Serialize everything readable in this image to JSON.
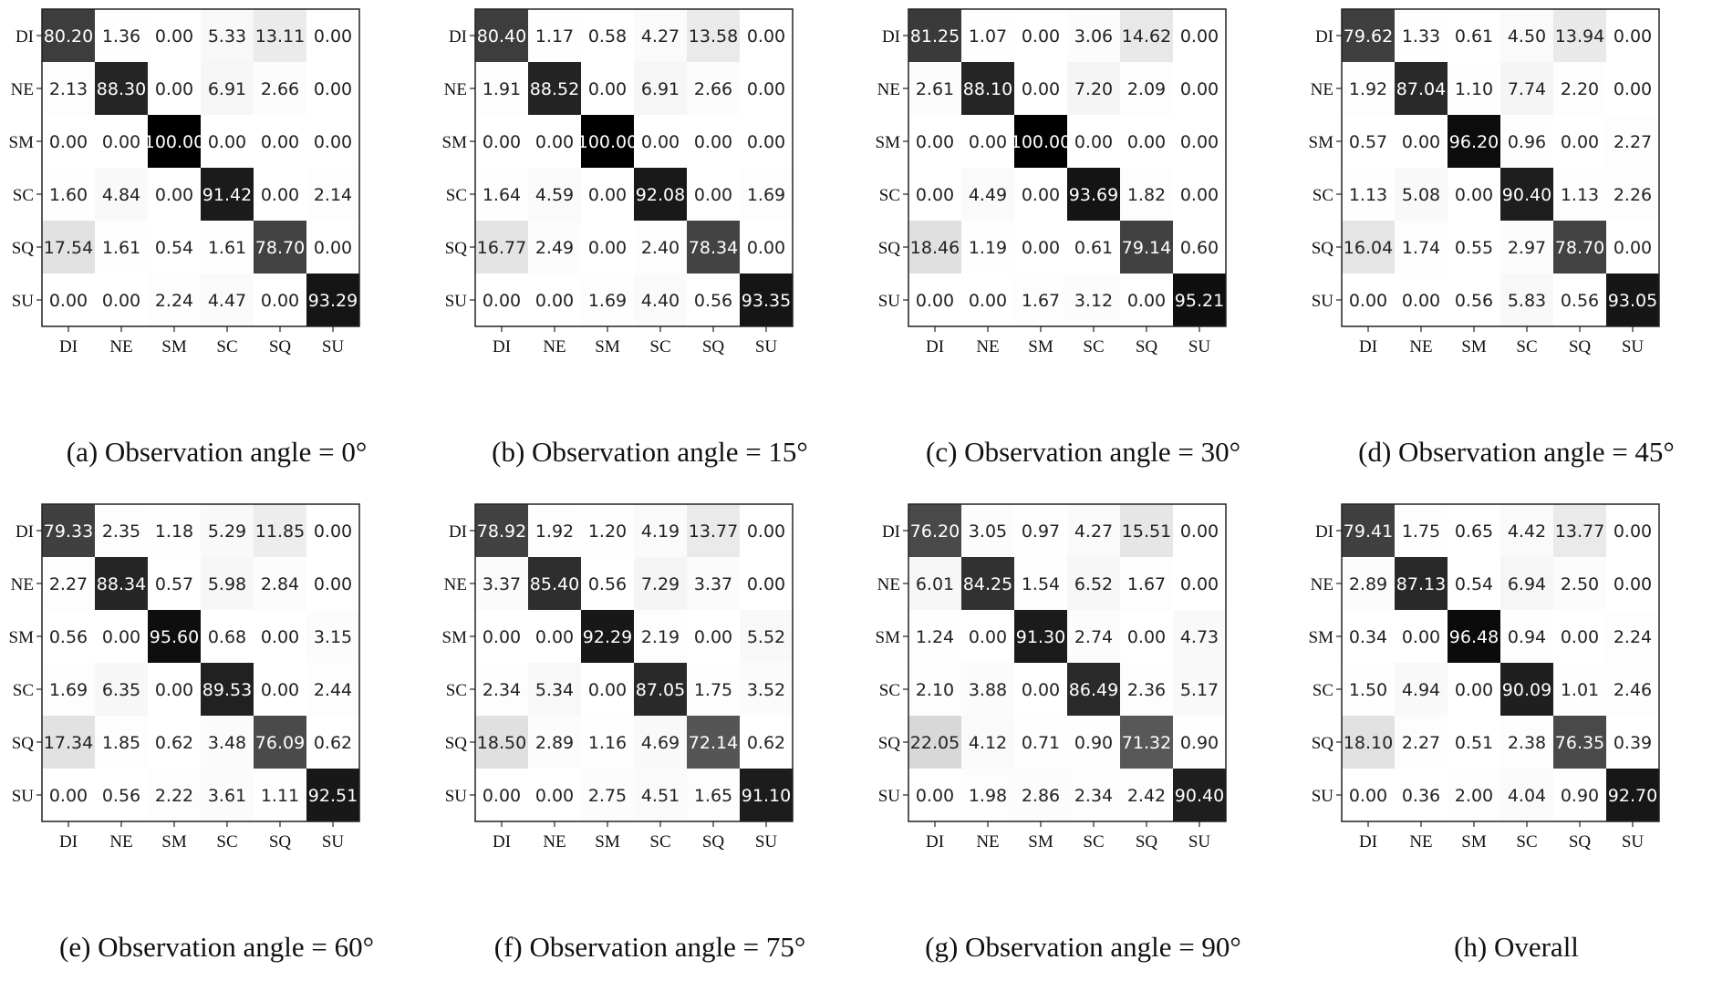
{
  "chart_data": [
    {
      "type": "heatmap",
      "caption": "(a) Observation angle = 0°",
      "xlabels": [
        "DI",
        "NE",
        "SM",
        "SC",
        "SQ",
        "SU"
      ],
      "ylabels": [
        "DI",
        "NE",
        "SM",
        "SC",
        "SQ",
        "SU"
      ],
      "values": [
        [
          80.2,
          1.36,
          0.0,
          5.33,
          13.11,
          0.0
        ],
        [
          2.13,
          88.3,
          0.0,
          6.91,
          2.66,
          0.0
        ],
        [
          0.0,
          0.0,
          100.0,
          0.0,
          0.0,
          0.0
        ],
        [
          1.6,
          4.84,
          0.0,
          91.42,
          0.0,
          2.14
        ],
        [
          17.54,
          1.61,
          0.54,
          1.61,
          78.7,
          0.0
        ],
        [
          0.0,
          0.0,
          2.24,
          4.47,
          0.0,
          93.29
        ]
      ]
    },
    {
      "type": "heatmap",
      "caption": "(b) Observation angle = 15°",
      "xlabels": [
        "DI",
        "NE",
        "SM",
        "SC",
        "SQ",
        "SU"
      ],
      "ylabels": [
        "DI",
        "NE",
        "SM",
        "SC",
        "SQ",
        "SU"
      ],
      "values": [
        [
          80.4,
          1.17,
          0.58,
          4.27,
          13.58,
          0.0
        ],
        [
          1.91,
          88.52,
          0.0,
          6.91,
          2.66,
          0.0
        ],
        [
          0.0,
          0.0,
          100.0,
          0.0,
          0.0,
          0.0
        ],
        [
          1.64,
          4.59,
          0.0,
          92.08,
          0.0,
          1.69
        ],
        [
          16.77,
          2.49,
          0.0,
          2.4,
          78.34,
          0.0
        ],
        [
          0.0,
          0.0,
          1.69,
          4.4,
          0.56,
          93.35
        ]
      ]
    },
    {
      "type": "heatmap",
      "caption": "(c) Observation angle = 30°",
      "xlabels": [
        "DI",
        "NE",
        "SM",
        "SC",
        "SQ",
        "SU"
      ],
      "ylabels": [
        "DI",
        "NE",
        "SM",
        "SC",
        "SQ",
        "SU"
      ],
      "values": [
        [
          81.25,
          1.07,
          0.0,
          3.06,
          14.62,
          0.0
        ],
        [
          2.61,
          88.1,
          0.0,
          7.2,
          2.09,
          0.0
        ],
        [
          0.0,
          0.0,
          100.0,
          0.0,
          0.0,
          0.0
        ],
        [
          0.0,
          4.49,
          0.0,
          93.69,
          1.82,
          0.0
        ],
        [
          18.46,
          1.19,
          0.0,
          0.61,
          79.14,
          0.6
        ],
        [
          0.0,
          0.0,
          1.67,
          3.12,
          0.0,
          95.21
        ]
      ]
    },
    {
      "type": "heatmap",
      "caption": "(d) Observation angle = 45°",
      "xlabels": [
        "DI",
        "NE",
        "SM",
        "SC",
        "SQ",
        "SU"
      ],
      "ylabels": [
        "DI",
        "NE",
        "SM",
        "SC",
        "SQ",
        "SU"
      ],
      "values": [
        [
          79.62,
          1.33,
          0.61,
          4.5,
          13.94,
          0.0
        ],
        [
          1.92,
          87.04,
          1.1,
          7.74,
          2.2,
          0.0
        ],
        [
          0.57,
          0.0,
          96.2,
          0.96,
          0.0,
          2.27
        ],
        [
          1.13,
          5.08,
          0.0,
          90.4,
          1.13,
          2.26
        ],
        [
          16.04,
          1.74,
          0.55,
          2.97,
          78.7,
          0.0
        ],
        [
          0.0,
          0.0,
          0.56,
          5.83,
          0.56,
          93.05
        ]
      ]
    },
    {
      "type": "heatmap",
      "caption": "(e) Observation angle = 60°",
      "xlabels": [
        "DI",
        "NE",
        "SM",
        "SC",
        "SQ",
        "SU"
      ],
      "ylabels": [
        "DI",
        "NE",
        "SM",
        "SC",
        "SQ",
        "SU"
      ],
      "values": [
        [
          79.33,
          2.35,
          1.18,
          5.29,
          11.85,
          0.0
        ],
        [
          2.27,
          88.34,
          0.57,
          5.98,
          2.84,
          0.0
        ],
        [
          0.56,
          0.0,
          95.6,
          0.68,
          0.0,
          3.15
        ],
        [
          1.69,
          6.35,
          0.0,
          89.53,
          0.0,
          2.44
        ],
        [
          17.34,
          1.85,
          0.62,
          3.48,
          76.09,
          0.62
        ],
        [
          0.0,
          0.56,
          2.22,
          3.61,
          1.11,
          92.51
        ]
      ]
    },
    {
      "type": "heatmap",
      "caption": "(f) Observation angle = 75°",
      "xlabels": [
        "DI",
        "NE",
        "SM",
        "SC",
        "SQ",
        "SU"
      ],
      "ylabels": [
        "DI",
        "NE",
        "SM",
        "SC",
        "SQ",
        "SU"
      ],
      "values": [
        [
          78.92,
          1.92,
          1.2,
          4.19,
          13.77,
          0.0
        ],
        [
          3.37,
          85.4,
          0.56,
          7.29,
          3.37,
          0.0
        ],
        [
          0.0,
          0.0,
          92.29,
          2.19,
          0.0,
          5.52
        ],
        [
          2.34,
          5.34,
          0.0,
          87.05,
          1.75,
          3.52
        ],
        [
          18.5,
          2.89,
          1.16,
          4.69,
          72.14,
          0.62
        ],
        [
          0.0,
          0.0,
          2.75,
          4.51,
          1.65,
          91.1
        ]
      ]
    },
    {
      "type": "heatmap",
      "caption": "(g) Observation angle = 90°",
      "xlabels": [
        "DI",
        "NE",
        "SM",
        "SC",
        "SQ",
        "SU"
      ],
      "ylabels": [
        "DI",
        "NE",
        "SM",
        "SC",
        "SQ",
        "SU"
      ],
      "values": [
        [
          76.2,
          3.05,
          0.97,
          4.27,
          15.51,
          0.0
        ],
        [
          6.01,
          84.25,
          1.54,
          6.52,
          1.67,
          0.0
        ],
        [
          1.24,
          0.0,
          91.3,
          2.74,
          0.0,
          4.73
        ],
        [
          2.1,
          3.88,
          0.0,
          86.49,
          2.36,
          5.17
        ],
        [
          22.05,
          4.12,
          0.71,
          0.9,
          71.32,
          0.9
        ],
        [
          0.0,
          1.98,
          2.86,
          2.34,
          2.42,
          90.4
        ]
      ]
    },
    {
      "type": "heatmap",
      "caption": "(h) Overall",
      "xlabels": [
        "DI",
        "NE",
        "SM",
        "SC",
        "SQ",
        "SU"
      ],
      "ylabels": [
        "DI",
        "NE",
        "SM",
        "SC",
        "SQ",
        "SU"
      ],
      "values": [
        [
          79.41,
          1.75,
          0.65,
          4.42,
          13.77,
          0.0
        ],
        [
          2.89,
          87.13,
          0.54,
          6.94,
          2.5,
          0.0
        ],
        [
          0.34,
          0.0,
          96.48,
          0.94,
          0.0,
          2.24
        ],
        [
          1.5,
          4.94,
          0.0,
          90.09,
          1.01,
          2.46
        ],
        [
          18.1,
          2.27,
          0.51,
          2.38,
          76.35,
          0.39
        ],
        [
          0.0,
          0.36,
          2.0,
          4.04,
          0.9,
          92.7
        ]
      ]
    }
  ]
}
